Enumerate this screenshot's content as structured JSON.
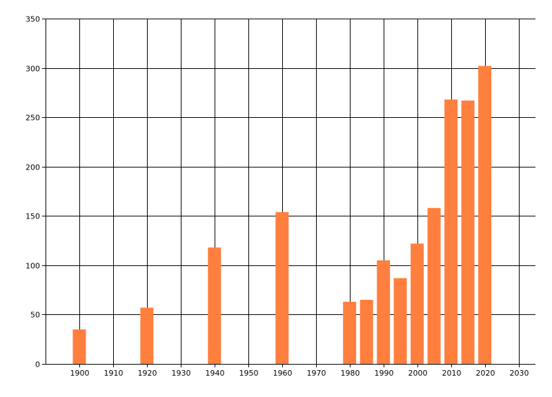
{
  "chart_data": {
    "type": "bar",
    "title": "",
    "xlabel": "",
    "ylabel": "",
    "x": [
      1900,
      1920,
      1940,
      1960,
      1980,
      1985,
      1990,
      1995,
      2000,
      2005,
      2010,
      2015,
      2020
    ],
    "values": [
      35,
      57,
      118,
      154,
      63,
      65,
      105,
      87,
      122,
      158,
      268,
      267,
      302
    ],
    "xlim": [
      1890,
      2035
    ],
    "ylim": [
      0,
      350
    ],
    "x_ticks": [
      1900,
      1910,
      1920,
      1930,
      1940,
      1950,
      1960,
      1970,
      1980,
      1990,
      2000,
      2010,
      2020,
      2030
    ],
    "x_tick_labels": [
      "1900",
      "1910",
      "1920",
      "1930",
      "1940",
      "1950",
      "1960",
      "1970",
      "1980",
      "1990",
      "2000",
      "2010",
      "2020",
      "2030"
    ],
    "y_ticks": [
      0,
      50,
      100,
      150,
      200,
      250,
      300,
      350
    ],
    "y_tick_labels": [
      "0",
      "50",
      "100",
      "150",
      "200",
      "250",
      "300",
      "350"
    ],
    "grid": true,
    "legend": "none",
    "bar_color": "#FF7F3F",
    "grid_color": "#000000"
  }
}
